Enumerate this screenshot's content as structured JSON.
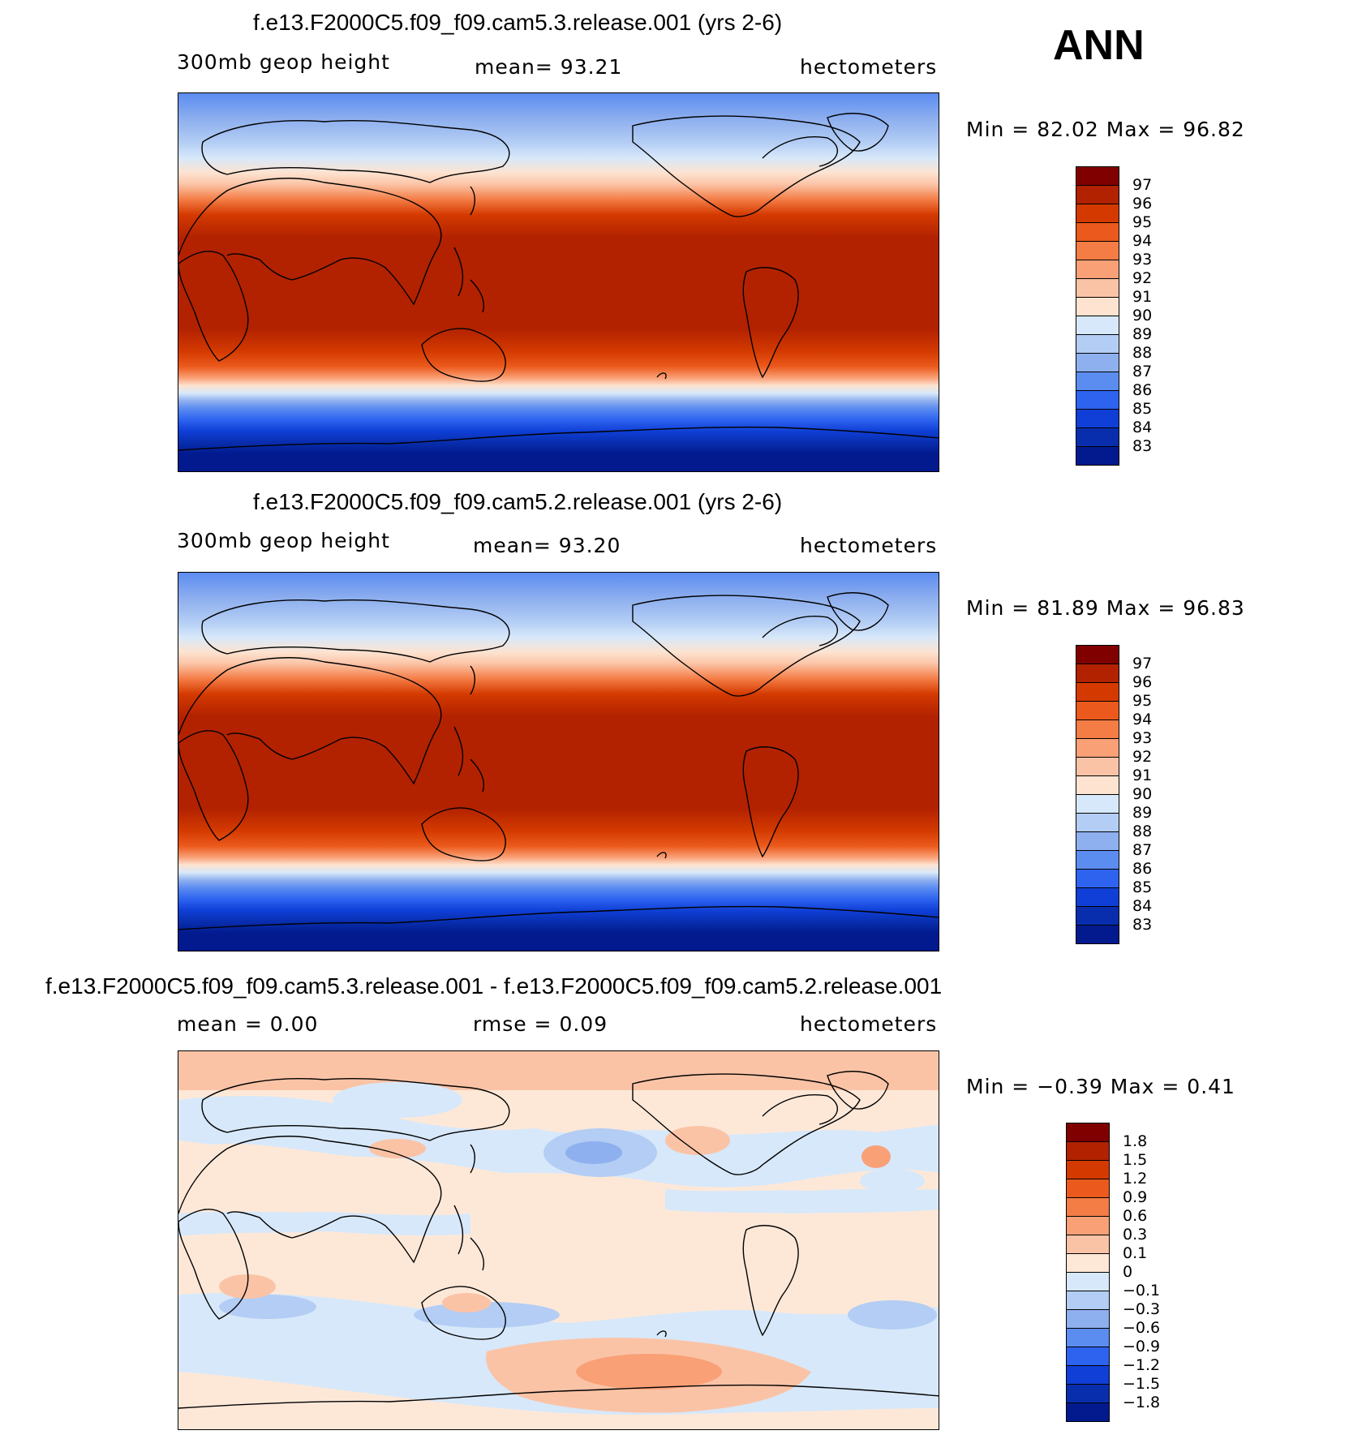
{
  "season": "ANN",
  "panels": [
    {
      "title": "f.e13.F2000C5.f09_f09.cam5.3.release.001 (yrs 2-6)",
      "left": "300mb geop height",
      "mid": "mean=   93.21",
      "right": "hectometers",
      "minmax": "Min =   82.02 Max =   96.82",
      "colorbar_labels": [
        "97",
        "96",
        "95",
        "94",
        "93",
        "92",
        "91",
        "90",
        "89",
        "88",
        "87",
        "86",
        "85",
        "84",
        "83"
      ]
    },
    {
      "title": "f.e13.F2000C5.f09_f09.cam5.2.release.001 (yrs 2-6)",
      "left": "300mb geop height",
      "mid": "mean=   93.20",
      "right": "hectometers",
      "minmax": "Min =   81.89 Max =   96.83",
      "colorbar_labels": [
        "97",
        "96",
        "95",
        "94",
        "93",
        "92",
        "91",
        "90",
        "89",
        "88",
        "87",
        "86",
        "85",
        "84",
        "83"
      ]
    },
    {
      "title": "f.e13.F2000C5.f09_f09.cam5.3.release.001 - f.e13.F2000C5.f09_f09.cam5.2.release.001",
      "left": "mean =    0.00",
      "mid": "rmse =    0.09",
      "right": "hectometers",
      "minmax": "Min =  −0.39 Max =    0.41",
      "colorbar_labels": [
        "1.8",
        "1.5",
        "1.2",
        "0.9",
        "0.6",
        "0.3",
        "0.1",
        "0",
        "−0.1",
        "−0.3",
        "−0.6",
        "−0.9",
        "−1.2",
        "−1.5",
        "−1.8"
      ]
    }
  ],
  "colors": {
    "full_scale": [
      "#800000",
      "#b22200",
      "#d43a00",
      "#eb5a1c",
      "#f47c45",
      "#f9a077",
      "#fbc3a6",
      "#fde3d0",
      "#d7e8fa",
      "#b3cdf4",
      "#8fb0ef",
      "#5b8cf0",
      "#2e63f0",
      "#0f3fd6",
      "#082eae",
      "#021a8e"
    ],
    "diff_scale": [
      "#800000",
      "#b22200",
      "#d43a00",
      "#eb5a1c",
      "#f47c45",
      "#f9a077",
      "#fbc3a6",
      "#fde8d8",
      "#d7e8fa",
      "#b3cdf4",
      "#8fb0ef",
      "#5b8cf0",
      "#2e63f0",
      "#0f3fd6",
      "#082eae",
      "#021a8e"
    ]
  }
}
